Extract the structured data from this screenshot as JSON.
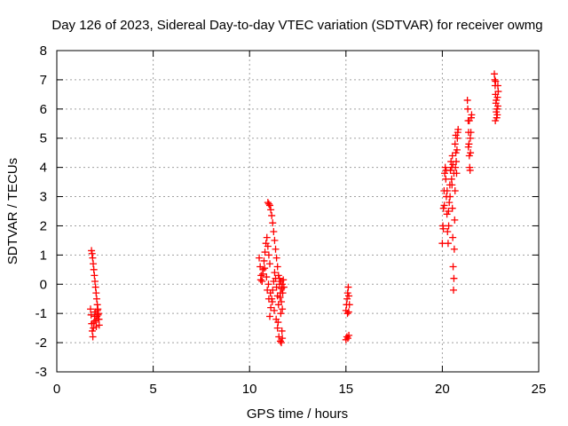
{
  "chart_data": {
    "type": "scatter",
    "title": "Day 126 of 2023, Sidereal Day-to-day VTEC variation (SDTVAR) for receiver owmg",
    "xlabel": "GPS time / hours",
    "ylabel": "SDTVAR / TECUs",
    "xlim": [
      0,
      25
    ],
    "ylim": [
      -3,
      8
    ],
    "xticks": [
      0,
      5,
      10,
      15,
      20,
      25
    ],
    "yticks": [
      -3,
      -2,
      -1,
      0,
      1,
      2,
      3,
      4,
      5,
      6,
      7,
      8
    ],
    "xtick_labels": [
      "0",
      "5",
      "10",
      "15",
      "20",
      "25"
    ],
    "ytick_labels": [
      "-3",
      "-2",
      "-1",
      "0",
      "1",
      "2",
      "3",
      "4",
      "5",
      "6",
      "7",
      "8"
    ],
    "grid": true,
    "marker": "+",
    "color": "#ff0000",
    "series": [
      {
        "name": "SDTVAR",
        "points": [
          [
            1.8,
            1.15
          ],
          [
            1.83,
            1.05
          ],
          [
            1.86,
            0.9
          ],
          [
            1.89,
            0.7
          ],
          [
            1.92,
            0.5
          ],
          [
            1.95,
            0.3
          ],
          [
            1.98,
            0.1
          ],
          [
            2.01,
            -0.1
          ],
          [
            2.04,
            -0.3
          ],
          [
            2.07,
            -0.5
          ],
          [
            2.1,
            -0.7
          ],
          [
            2.13,
            -0.85
          ],
          [
            2.16,
            -1.0
          ],
          [
            2.19,
            -1.2
          ],
          [
            2.2,
            -1.4
          ],
          [
            1.75,
            -0.85
          ],
          [
            1.78,
            -1.05
          ],
          [
            1.81,
            -1.35
          ],
          [
            1.84,
            -1.6
          ],
          [
            1.87,
            -1.8
          ],
          [
            1.9,
            -1.5
          ],
          [
            1.93,
            -1.3
          ],
          [
            1.96,
            -1.1
          ],
          [
            1.99,
            -0.95
          ],
          [
            2.02,
            -1.25
          ],
          [
            2.05,
            -1.45
          ],
          [
            2.08,
            -1.1
          ],
          [
            2.11,
            -0.9
          ],
          [
            2.14,
            -1.05
          ],
          [
            2.17,
            -1.2
          ],
          [
            10.5,
            0.9
          ],
          [
            10.55,
            0.6
          ],
          [
            10.6,
            0.3
          ],
          [
            10.65,
            0.1
          ],
          [
            10.7,
            0.5
          ],
          [
            10.75,
            0.8
          ],
          [
            10.8,
            1.1
          ],
          [
            10.85,
            1.4
          ],
          [
            10.9,
            1.6
          ],
          [
            10.95,
            1.3
          ],
          [
            11.0,
            1.0
          ],
          [
            11.05,
            0.7
          ],
          [
            10.58,
            0.15
          ],
          [
            10.68,
            0.35
          ],
          [
            10.78,
            0.55
          ],
          [
            10.88,
            0.25
          ],
          [
            10.98,
            0.0
          ],
          [
            11.08,
            -0.3
          ],
          [
            11.18,
            -0.6
          ],
          [
            11.28,
            -0.9
          ],
          [
            11.38,
            -1.2
          ],
          [
            11.45,
            -1.5
          ],
          [
            11.52,
            -1.8
          ],
          [
            11.6,
            -1.95
          ],
          [
            11.65,
            -2.0
          ],
          [
            11.7,
            -1.85
          ],
          [
            11.68,
            -1.6
          ],
          [
            10.95,
            2.8
          ],
          [
            11.0,
            2.75
          ],
          [
            11.05,
            2.7
          ],
          [
            11.1,
            2.55
          ],
          [
            11.15,
            2.35
          ],
          [
            11.2,
            2.1
          ],
          [
            11.25,
            1.8
          ],
          [
            11.3,
            1.5
          ],
          [
            11.35,
            1.2
          ],
          [
            11.4,
            0.9
          ],
          [
            11.45,
            0.6
          ],
          [
            11.5,
            0.3
          ],
          [
            11.55,
            0.0
          ],
          [
            11.6,
            -0.3
          ],
          [
            11.65,
            -0.6
          ],
          [
            11.7,
            -0.85
          ],
          [
            11.62,
            -1.0
          ],
          [
            11.5,
            -0.7
          ],
          [
            11.45,
            -0.4
          ],
          [
            11.4,
            -0.1
          ],
          [
            11.35,
            0.2
          ],
          [
            11.3,
            0.4
          ],
          [
            11.25,
            0.1
          ],
          [
            11.2,
            -0.2
          ],
          [
            11.15,
            -0.5
          ],
          [
            11.1,
            -0.8
          ],
          [
            11.05,
            -1.1
          ],
          [
            11.0,
            -0.5
          ],
          [
            10.92,
            -0.2
          ],
          [
            11.55,
            0.2
          ],
          [
            11.62,
            0.1
          ],
          [
            11.7,
            0.0
          ],
          [
            11.75,
            0.15
          ],
          [
            11.78,
            -0.1
          ],
          [
            11.72,
            -0.3
          ],
          [
            11.66,
            -0.15
          ],
          [
            11.58,
            -0.45
          ],
          [
            11.48,
            -1.3
          ],
          [
            15.0,
            -1.9
          ],
          [
            15.05,
            -1.8
          ],
          [
            15.1,
            -1.85
          ],
          [
            15.15,
            -1.75
          ],
          [
            15.0,
            -0.9
          ],
          [
            15.03,
            -0.7
          ],
          [
            15.06,
            -0.5
          ],
          [
            15.09,
            -0.3
          ],
          [
            15.12,
            -0.1
          ],
          [
            15.15,
            -0.4
          ],
          [
            15.18,
            -0.7
          ],
          [
            15.08,
            -1.0
          ],
          [
            15.14,
            -0.95
          ],
          [
            20.0,
            1.4
          ],
          [
            20.03,
            2.0
          ],
          [
            20.06,
            2.6
          ],
          [
            20.09,
            3.2
          ],
          [
            20.12,
            3.8
          ],
          [
            20.15,
            4.0
          ],
          [
            20.18,
            3.6
          ],
          [
            20.21,
            3.0
          ],
          [
            20.24,
            2.4
          ],
          [
            20.27,
            1.8
          ],
          [
            20.3,
            1.4
          ],
          [
            20.33,
            2.0
          ],
          [
            20.36,
            2.8
          ],
          [
            20.39,
            3.4
          ],
          [
            20.42,
            3.9
          ],
          [
            20.45,
            4.2
          ],
          [
            20.48,
            4.0
          ],
          [
            20.5,
            3.4
          ],
          [
            20.52,
            2.6
          ],
          [
            20.54,
            1.6
          ],
          [
            20.56,
            0.6
          ],
          [
            20.58,
            -0.2
          ],
          [
            20.6,
            0.2
          ],
          [
            20.62,
            1.2
          ],
          [
            20.64,
            2.2
          ],
          [
            20.66,
            3.2
          ],
          [
            20.68,
            4.0
          ],
          [
            20.7,
            4.5
          ],
          [
            20.72,
            4.2
          ],
          [
            20.74,
            3.8
          ],
          [
            20.76,
            4.6
          ],
          [
            20.78,
            5.0
          ],
          [
            20.8,
            5.2
          ],
          [
            20.82,
            5.3
          ],
          [
            20.6,
            3.8
          ],
          [
            20.55,
            4.1
          ],
          [
            20.52,
            4.4
          ],
          [
            20.48,
            3.6
          ],
          [
            20.4,
            3.0
          ],
          [
            20.32,
            2.5
          ],
          [
            20.25,
            3.2
          ],
          [
            20.2,
            3.9
          ],
          [
            20.1,
            2.7
          ],
          [
            20.05,
            1.9
          ],
          [
            20.66,
            4.8
          ],
          [
            20.7,
            5.1
          ],
          [
            21.3,
            6.3
          ],
          [
            21.32,
            6.0
          ],
          [
            21.34,
            5.6
          ],
          [
            21.36,
            5.2
          ],
          [
            21.38,
            4.8
          ],
          [
            21.4,
            4.4
          ],
          [
            21.42,
            4.0
          ],
          [
            21.44,
            3.9
          ],
          [
            21.46,
            4.5
          ],
          [
            21.48,
            5.2
          ],
          [
            21.5,
            5.7
          ],
          [
            21.52,
            5.8
          ],
          [
            21.4,
            5.6
          ],
          [
            21.35,
            4.7
          ],
          [
            21.45,
            5.0
          ],
          [
            22.7,
            7.2
          ],
          [
            22.72,
            7.0
          ],
          [
            22.74,
            6.8
          ],
          [
            22.76,
            6.5
          ],
          [
            22.78,
            6.2
          ],
          [
            22.8,
            5.9
          ],
          [
            22.82,
            5.7
          ],
          [
            22.84,
            6.0
          ],
          [
            22.86,
            6.4
          ],
          [
            22.88,
            6.8
          ],
          [
            22.9,
            6.6
          ],
          [
            22.76,
            6.95
          ],
          [
            22.8,
            6.3
          ],
          [
            22.85,
            5.8
          ],
          [
            22.75,
            5.6
          ],
          [
            22.88,
            6.1
          ]
        ]
      }
    ]
  }
}
